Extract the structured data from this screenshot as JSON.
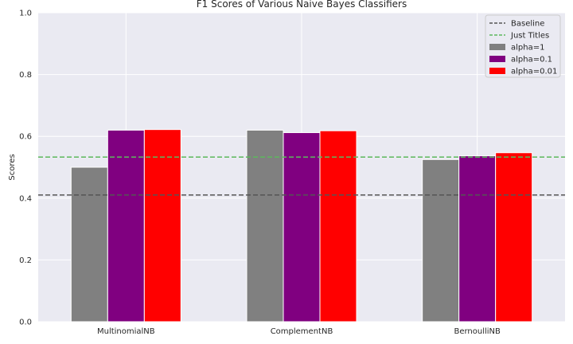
{
  "chart_data": {
    "type": "bar",
    "title": "F1 Scores of Various Naive Bayes Classifiers",
    "xlabel": "",
    "ylabel": "Scores",
    "ylim": [
      0,
      1.0
    ],
    "yticks": [
      "0.0",
      "0.2",
      "0.4",
      "0.6",
      "0.8",
      "1.0"
    ],
    "categories": [
      "MultinomialNB",
      "ComplementNB",
      "BernoulliNB"
    ],
    "series": [
      {
        "name": "alpha=1",
        "color": "#808080",
        "values": [
          0.5,
          0.62,
          0.525
        ]
      },
      {
        "name": "alpha=0.1",
        "color": "#800080",
        "values": [
          0.62,
          0.612,
          0.537
        ]
      },
      {
        "name": "alpha=0.01",
        "color": "#ff0000",
        "values": [
          0.622,
          0.618,
          0.547
        ]
      }
    ],
    "reference_lines": [
      {
        "name": "Baseline",
        "value": 0.41,
        "color": "#555555",
        "style": "dashed"
      },
      {
        "name": "Just Titles",
        "value": 0.533,
        "color": "#5cb85c",
        "style": "dashed"
      }
    ],
    "grid": true,
    "legend_position": "top-right",
    "background": "#eaeaf2"
  }
}
